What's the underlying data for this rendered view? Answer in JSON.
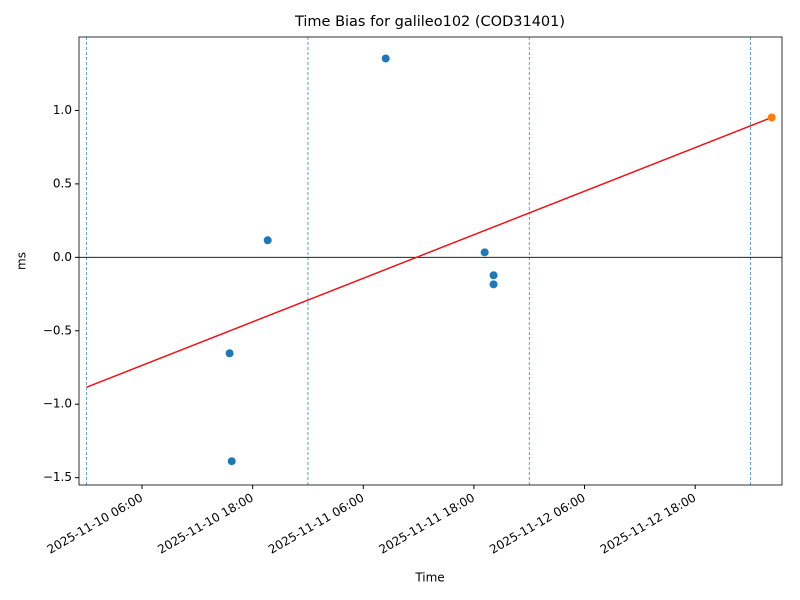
{
  "chart_data": {
    "type": "scatter",
    "title": "Time Bias for galileo102 (COD31401)",
    "x_label": "Time",
    "y_label": "ms",
    "xlim": [
      "2025-11-09 23:10",
      "2025-11-13 03:25"
    ],
    "xticks": [
      "2025-11-10 06:00",
      "2025-11-10 18:00",
      "2025-11-11 06:00",
      "2025-11-11 18:00",
      "2025-11-12 06:00",
      "2025-11-12 18:00"
    ],
    "ylim": [
      -1.55,
      1.5
    ],
    "yticks": [
      {
        "value": -1.5,
        "label": "−1.5"
      },
      {
        "value": -1.0,
        "label": "−1.0"
      },
      {
        "value": -0.5,
        "label": "−0.5"
      },
      {
        "value": 0,
        "label": "0.0"
      },
      {
        "value": 0.5,
        "label": "0.5"
      },
      {
        "value": 1.0,
        "label": "1.0"
      }
    ],
    "vlines": [
      "2025-11-10 00:00",
      "2025-11-11 00:00",
      "2025-11-12 00:00",
      "2025-11-13 00:00"
    ],
    "hlines": [
      0
    ],
    "series": [
      {
        "type": "scatter",
        "color": "#1f77b4",
        "x": [
          "2025-11-10 15:30",
          "2025-11-10 15:44",
          "2025-11-10 19:38",
          "2025-11-11 08:26",
          "2025-11-11 19:10",
          "2025-11-11 20:08",
          "2025-11-11 20:08"
        ],
        "values": [
          -0.653,
          -1.388,
          0.116,
          1.354,
          0.034,
          -0.122,
          -0.184
        ]
      },
      {
        "type": "line",
        "color": "#e8161b",
        "x": [
          "2025-11-10 00:00",
          "2025-11-13 02:18"
        ],
        "values": [
          -0.884,
          0.952
        ]
      },
      {
        "type": "scatter",
        "color": "#ff7f0e",
        "x": [
          "2025-11-13 02:18"
        ],
        "values": [
          0.952
        ]
      }
    ]
  }
}
